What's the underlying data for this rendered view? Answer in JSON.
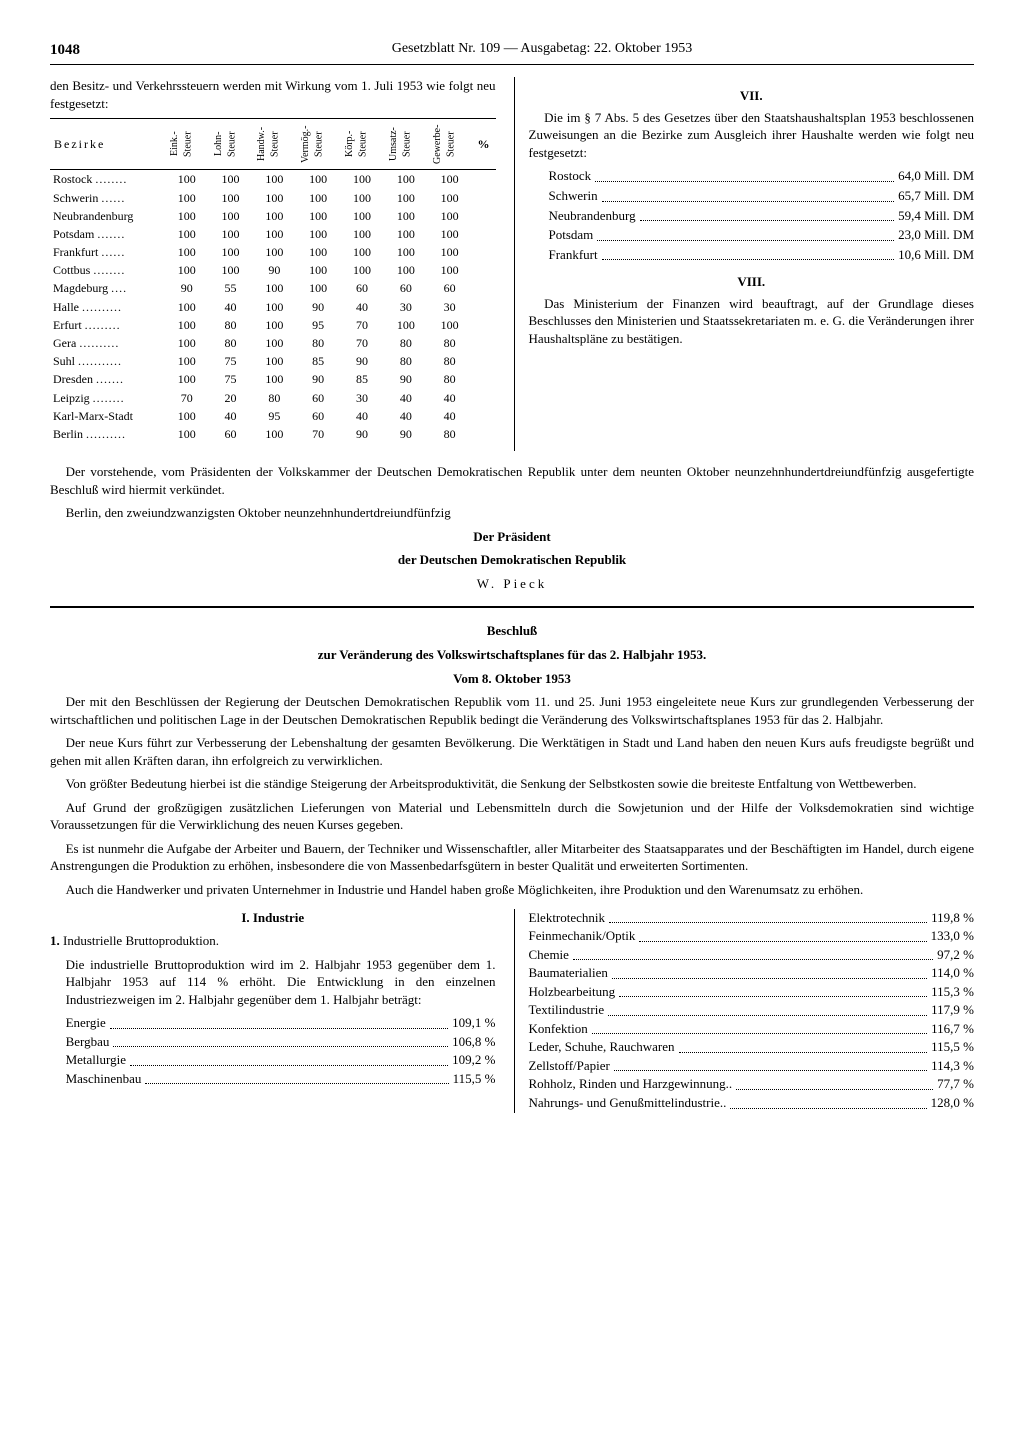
{
  "header": {
    "page_number": "1048",
    "title": "Gesetzblatt Nr. 109 — Ausgabetag: 22. Oktober 1953"
  },
  "intro_text": "den Besitz- und Verkehrssteuern werden mit Wirkung vom 1. Juli 1953 wie folgt neu festgesetzt:",
  "tax_table": {
    "col_bezirke": "Bezirke",
    "columns": [
      "Eink.-Steuer",
      "Lohn-Steuer",
      "Handw.-Steuer",
      "Vermög.-Steuer",
      "Körp.-Steuer",
      "Umsatz-Steuer",
      "Gewerbe-Steuer"
    ],
    "pct": "%",
    "rows": [
      {
        "name": "Rostock",
        "dots": "........",
        "v": [
          100,
          100,
          100,
          100,
          100,
          100,
          100
        ]
      },
      {
        "name": "Schwerin",
        "dots": "......",
        "v": [
          100,
          100,
          100,
          100,
          100,
          100,
          100
        ]
      },
      {
        "name": "Neubrandenburg",
        "dots": "",
        "v": [
          100,
          100,
          100,
          100,
          100,
          100,
          100
        ]
      },
      {
        "name": "Potsdam",
        "dots": ".......",
        "v": [
          100,
          100,
          100,
          100,
          100,
          100,
          100
        ]
      },
      {
        "name": "Frankfurt",
        "dots": "......",
        "v": [
          100,
          100,
          100,
          100,
          100,
          100,
          100
        ]
      },
      {
        "name": "Cottbus",
        "dots": "........",
        "v": [
          100,
          100,
          90,
          100,
          100,
          100,
          100
        ]
      },
      {
        "name": "Magdeburg",
        "dots": "....",
        "v": [
          90,
          55,
          100,
          100,
          60,
          60,
          60
        ]
      },
      {
        "name": "Halle",
        "dots": "..........",
        "v": [
          100,
          40,
          100,
          90,
          40,
          30,
          30
        ]
      },
      {
        "name": "Erfurt",
        "dots": ".........",
        "v": [
          100,
          80,
          100,
          95,
          70,
          100,
          100
        ]
      },
      {
        "name": "Gera",
        "dots": "..........",
        "v": [
          100,
          80,
          100,
          80,
          70,
          80,
          80
        ]
      },
      {
        "name": "Suhl",
        "dots": "...........",
        "v": [
          100,
          75,
          100,
          85,
          90,
          80,
          80
        ]
      },
      {
        "name": "Dresden",
        "dots": ".......",
        "v": [
          100,
          75,
          100,
          90,
          85,
          90,
          80
        ]
      },
      {
        "name": "Leipzig",
        "dots": "........",
        "v": [
          70,
          20,
          80,
          60,
          30,
          40,
          40
        ]
      },
      {
        "name": "Karl-Marx-Stadt",
        "dots": "",
        "v": [
          100,
          40,
          95,
          60,
          40,
          40,
          40
        ]
      },
      {
        "name": "Berlin",
        "dots": "..........",
        "v": [
          100,
          60,
          100,
          70,
          90,
          90,
          80
        ]
      }
    ]
  },
  "section7": {
    "head": "VII.",
    "text": "Die im § 7 Abs. 5 des Gesetzes über den Staatshaushaltsplan 1953 beschlossenen Zuweisungen an die Bezirke zum Ausgleich ihrer Haushalte werden wie folgt neu festgesetzt:",
    "rows": [
      {
        "name": "Rostock",
        "val": "64,0 Mill. DM"
      },
      {
        "name": "Schwerin",
        "val": "65,7 Mill. DM"
      },
      {
        "name": "Neubrandenburg",
        "val": "59,4 Mill. DM"
      },
      {
        "name": "Potsdam",
        "val": "23,0 Mill. DM"
      },
      {
        "name": "Frankfurt",
        "val": "10,6 Mill. DM"
      }
    ]
  },
  "section8": {
    "head": "VIII.",
    "text": "Das Ministerium der Finanzen wird beauftragt, auf der Grundlage dieses Beschlusses den Ministerien und Staatssekretariaten m. e. G. die Veränderungen ihrer Haushaltspläne zu bestätigen."
  },
  "closing": {
    "p1": "Der vorstehende, vom Präsidenten der Volkskammer der Deutschen Demokratischen Republik unter dem neunten Oktober neunzehnhundertdreiundfünfzig ausgefertigte Beschluß wird hiermit verkündet.",
    "p2": "Berlin, den zweiundzwanzigsten Oktober neunzehnhundertdreiundfünfzig",
    "l1": "Der Präsident",
    "l2": "der Deutschen Demokratischen Republik",
    "l3": "W. Pieck"
  },
  "resolution": {
    "h1": "Beschluß",
    "h2": "zur Veränderung des Volkswirtschaftsplanes für das 2. Halbjahr 1953.",
    "h3": "Vom 8. Oktober 1953",
    "paras": [
      "Der mit den Beschlüssen der Regierung der Deutschen Demokratischen Republik vom 11. und 25. Juni 1953 eingeleitete neue Kurs zur grundlegenden Verbesserung der wirtschaftlichen und politischen Lage in der Deutschen Demokratischen Republik bedingt die Veränderung des Volkswirtschaftsplanes 1953 für das 2. Halbjahr.",
      "Der neue Kurs führt zur Verbesserung der Lebenshaltung der gesamten Bevölkerung. Die Werktätigen in Stadt und Land haben den neuen Kurs aufs freudigste begrüßt und gehen mit allen Kräften daran, ihn erfolgreich zu verwirklichen.",
      "Von größter Bedeutung hierbei ist die ständige Steigerung der Arbeitsproduktivität, die Senkung der Selbstkosten sowie die breiteste Entfaltung von Wettbewerben.",
      "Auf Grund der großzügigen zusätzlichen Lieferungen von Material und Lebensmitteln durch die Sowjetunion und der Hilfe der Volksdemokratien sind wichtige Voraussetzungen für die Verwirklichung des neuen Kurses gegeben.",
      "Es ist nunmehr die Aufgabe der Arbeiter und Bauern, der Techniker und Wissenschaftler, aller Mitarbeiter des Staatsapparates und der Beschäftigten im Handel, durch eigene Anstrengungen die Produktion zu erhöhen, insbesondere die von Massenbedarfsgütern in bester Qualität und erweiterten Sortimenten.",
      "Auch die Handwerker und privaten Unternehmer in Industrie und Handel haben große Möglichkeiten, ihre Produktion und den Warenumsatz zu erhöhen."
    ]
  },
  "industry": {
    "head": "I. Industrie",
    "sub1": "1.",
    "sub1_title": "Industrielle Bruttoproduktion.",
    "sub1_text": "Die industrielle Bruttoproduktion wird im 2. Halbjahr 1953 gegenüber dem 1. Halbjahr 1953 auf 114 % erhöht. Die Entwicklung in den einzelnen Industriezweigen im 2. Halbjahr gegenüber dem 1. Halbjahr beträgt:",
    "left": [
      {
        "name": "Energie",
        "val": "109,1 %"
      },
      {
        "name": "Bergbau",
        "val": "106,8 %"
      },
      {
        "name": "Metallurgie",
        "val": "109,2 %"
      },
      {
        "name": "Maschinenbau",
        "val": "115,5 %"
      }
    ],
    "right": [
      {
        "name": "Elektrotechnik",
        "val": "119,8 %"
      },
      {
        "name": "Feinmechanik/Optik",
        "val": "133,0 %"
      },
      {
        "name": "Chemie",
        "val": "97,2 %"
      },
      {
        "name": "Baumaterialien",
        "val": "114,0 %"
      },
      {
        "name": "Holzbearbeitung",
        "val": "115,3 %"
      },
      {
        "name": "Textilindustrie",
        "val": "117,9 %"
      },
      {
        "name": "Konfektion",
        "val": "116,7 %"
      },
      {
        "name": "Leder, Schuhe, Rauchwaren",
        "val": "115,5 %"
      },
      {
        "name": "Zellstoff/Papier",
        "val": "114,3 %"
      },
      {
        "name": "Rohholz, Rinden und Harzgewinnung..",
        "val": "77,7 %"
      },
      {
        "name": "Nahrungs- und Genußmittelindustrie..",
        "val": "128,0 %"
      }
    ]
  }
}
